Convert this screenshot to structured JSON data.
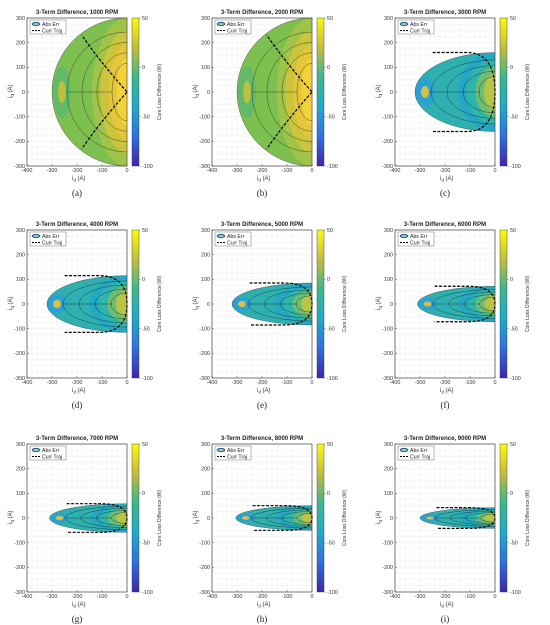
{
  "figure": {
    "panels": [
      {
        "caption": "(a)",
        "title": "3-Term Difference, 1000 RPM",
        "rpm": 1000,
        "region_halfheight": 300,
        "region_left": -300,
        "traj_peak": 230
      },
      {
        "caption": "(b)",
        "title": "3-Term Difference, 2000 RPM",
        "rpm": 2000,
        "region_halfheight": 300,
        "region_left": -300,
        "traj_peak": 230
      },
      {
        "caption": "(c)",
        "title": "3-Term Difference, 3000 RPM",
        "rpm": 3000,
        "region_halfheight": 160,
        "region_left": -320,
        "traj_peak": 160
      },
      {
        "caption": "(d)",
        "title": "3-Term Difference, 4000 RPM",
        "rpm": 4000,
        "region_halfheight": 115,
        "region_left": -320,
        "traj_peak": 115
      },
      {
        "caption": "(e)",
        "title": "3-Term Difference, 5000 RPM",
        "rpm": 5000,
        "region_halfheight": 85,
        "region_left": -320,
        "traj_peak": 85
      },
      {
        "caption": "(f)",
        "title": "3-Term Difference, 6000 RPM",
        "rpm": 6000,
        "region_halfheight": 72,
        "region_left": -310,
        "traj_peak": 72
      },
      {
        "caption": "(g)",
        "title": "3-Term Difference, 7000 RPM",
        "rpm": 7000,
        "region_halfheight": 58,
        "region_left": -310,
        "traj_peak": 58
      },
      {
        "caption": "(h)",
        "title": "3-Term Difference, 8000 RPM",
        "rpm": 8000,
        "region_halfheight": 50,
        "region_left": -305,
        "traj_peak": 50
      },
      {
        "caption": "(i)",
        "title": "3-Term Difference, 9000 RPM",
        "rpm": 9000,
        "region_halfheight": 42,
        "region_left": -300,
        "traj_peak": 42
      }
    ],
    "legend": {
      "abs_err": "Abs Err",
      "curr_traj": "Curr Traj"
    },
    "xlabel": "i",
    "xlabel_sub": "d",
    "ylabel": "i",
    "ylabel_sub": "q",
    "unit": "(A)",
    "colorbar_label": "Core Loss Difference (W)",
    "colorbar_ticks": [
      "50",
      "0",
      "-50",
      "-100"
    ],
    "xticks": [
      "-400",
      "-300",
      "-200",
      "-100",
      "0"
    ],
    "yticks": [
      "300",
      "200",
      "100",
      "0",
      "-100",
      "-200",
      "-300"
    ]
  },
  "chart_data": {
    "type": "heatmap",
    "x_range": [
      -400,
      0
    ],
    "y_range": [
      -300,
      300
    ],
    "color_range": [
      -100,
      50
    ],
    "colormap": [
      "#3e26a8",
      "#2f97e6",
      "#21b0aa",
      "#7ec050",
      "#f2c834",
      "#f9fb0e"
    ]
  }
}
